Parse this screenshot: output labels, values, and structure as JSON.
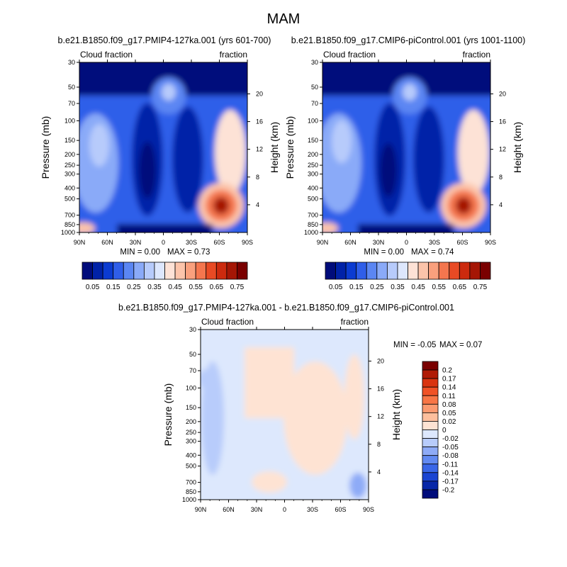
{
  "main_title": "MAM",
  "chart_data": [
    {
      "type": "heatmap",
      "title": "b.e21.B1850.f09_g17.PMIP4-127ka.001 (yrs 601-700)",
      "left_label": "Cloud fraction",
      "right_label": "fraction",
      "ylabel": "Pressure (mb)",
      "ylabel_right": "Height (km)",
      "x_ticks": [
        "90N",
        "60N",
        "30N",
        "0",
        "30S",
        "60S",
        "90S"
      ],
      "y_ticks": [
        "30",
        "50",
        "70",
        "100",
        "150",
        "200",
        "250",
        "300",
        "400",
        "500",
        "700",
        "850",
        "1000"
      ],
      "y_ticks_right": [
        "20",
        "16",
        "12",
        "8",
        "4"
      ],
      "min_text": "MIN =   0.00",
      "max_text": "MAX =   0.73",
      "min": 0.0,
      "max": 0.73,
      "colorbar": {
        "orientation": "horizontal",
        "labels": [
          "0.05",
          "0.15",
          "0.25",
          "0.35",
          "0.45",
          "0.55",
          "0.65",
          "0.75"
        ],
        "colors": [
          "#000c7b",
          "#0022a8",
          "#0b3bd1",
          "#2f5ee9",
          "#5b86f3",
          "#8aaaf8",
          "#b7cbfb",
          "#dde7fd",
          "#fde2d6",
          "#fcc4aa",
          "#f9a07d",
          "#f4764e",
          "#e84a24",
          "#cc2a0e",
          "#a51605",
          "#7a0000"
        ]
      }
    },
    {
      "type": "heatmap",
      "title": "b.e21.B1850.f09_g17.CMIP6-piControl.001 (yrs 1001-1100)",
      "left_label": "Cloud fraction",
      "right_label": "fraction",
      "ylabel": "Pressure (mb)",
      "ylabel_right": "Height (km)",
      "x_ticks": [
        "90N",
        "60N",
        "30N",
        "0",
        "30S",
        "60S",
        "90S"
      ],
      "y_ticks": [
        "30",
        "50",
        "70",
        "100",
        "150",
        "200",
        "250",
        "300",
        "400",
        "500",
        "700",
        "850",
        "1000"
      ],
      "y_ticks_right": [
        "20",
        "16",
        "12",
        "8",
        "4"
      ],
      "min_text": "MIN =   0.00",
      "max_text": "MAX =   0.74",
      "min": 0.0,
      "max": 0.74,
      "colorbar": {
        "orientation": "horizontal",
        "labels": [
          "0.05",
          "0.15",
          "0.25",
          "0.35",
          "0.45",
          "0.55",
          "0.65",
          "0.75"
        ],
        "colors": [
          "#000c7b",
          "#0022a8",
          "#0b3bd1",
          "#2f5ee9",
          "#5b86f3",
          "#8aaaf8",
          "#b7cbfb",
          "#dde7fd",
          "#fde2d6",
          "#fcc4aa",
          "#f9a07d",
          "#f4764e",
          "#e84a24",
          "#cc2a0e",
          "#a51605",
          "#7a0000"
        ]
      }
    },
    {
      "type": "heatmap",
      "title": "b.e21.B1850.f09_g17.PMIP4-127ka.001 - b.e21.B1850.f09_g17.CMIP6-piControl.001",
      "left_label": "Cloud fraction",
      "right_label": "fraction",
      "ylabel": "Pressure (mb)",
      "ylabel_right": "Height (km)",
      "x_ticks": [
        "90N",
        "60N",
        "30N",
        "0",
        "30S",
        "60S",
        "90S"
      ],
      "y_ticks": [
        "30",
        "50",
        "70",
        "100",
        "150",
        "200",
        "250",
        "300",
        "400",
        "500",
        "700",
        "850",
        "1000"
      ],
      "y_ticks_right": [
        "20",
        "16",
        "12",
        "8",
        "4"
      ],
      "min_text": "MIN =  -0.05",
      "max_text": "MAX =   0.07",
      "min": -0.05,
      "max": 0.07,
      "colorbar": {
        "orientation": "vertical",
        "labels": [
          "0.2",
          "0.17",
          "0.14",
          "0.11",
          "0.08",
          "0.05",
          "0.02",
          "0",
          "-0.02",
          "-0.05",
          "-0.08",
          "-0.11",
          "-0.14",
          "-0.17",
          "-0.2"
        ],
        "colors": [
          "#7a0000",
          "#b01a05",
          "#d93410",
          "#f05226",
          "#f87646",
          "#fb9a70",
          "#fdbf9d",
          "#fee3d3",
          "#dde8fd",
          "#b8ccfb",
          "#8eabf7",
          "#628af2",
          "#3966e8",
          "#1a44d2",
          "#0727a8",
          "#000c7b"
        ]
      }
    }
  ]
}
